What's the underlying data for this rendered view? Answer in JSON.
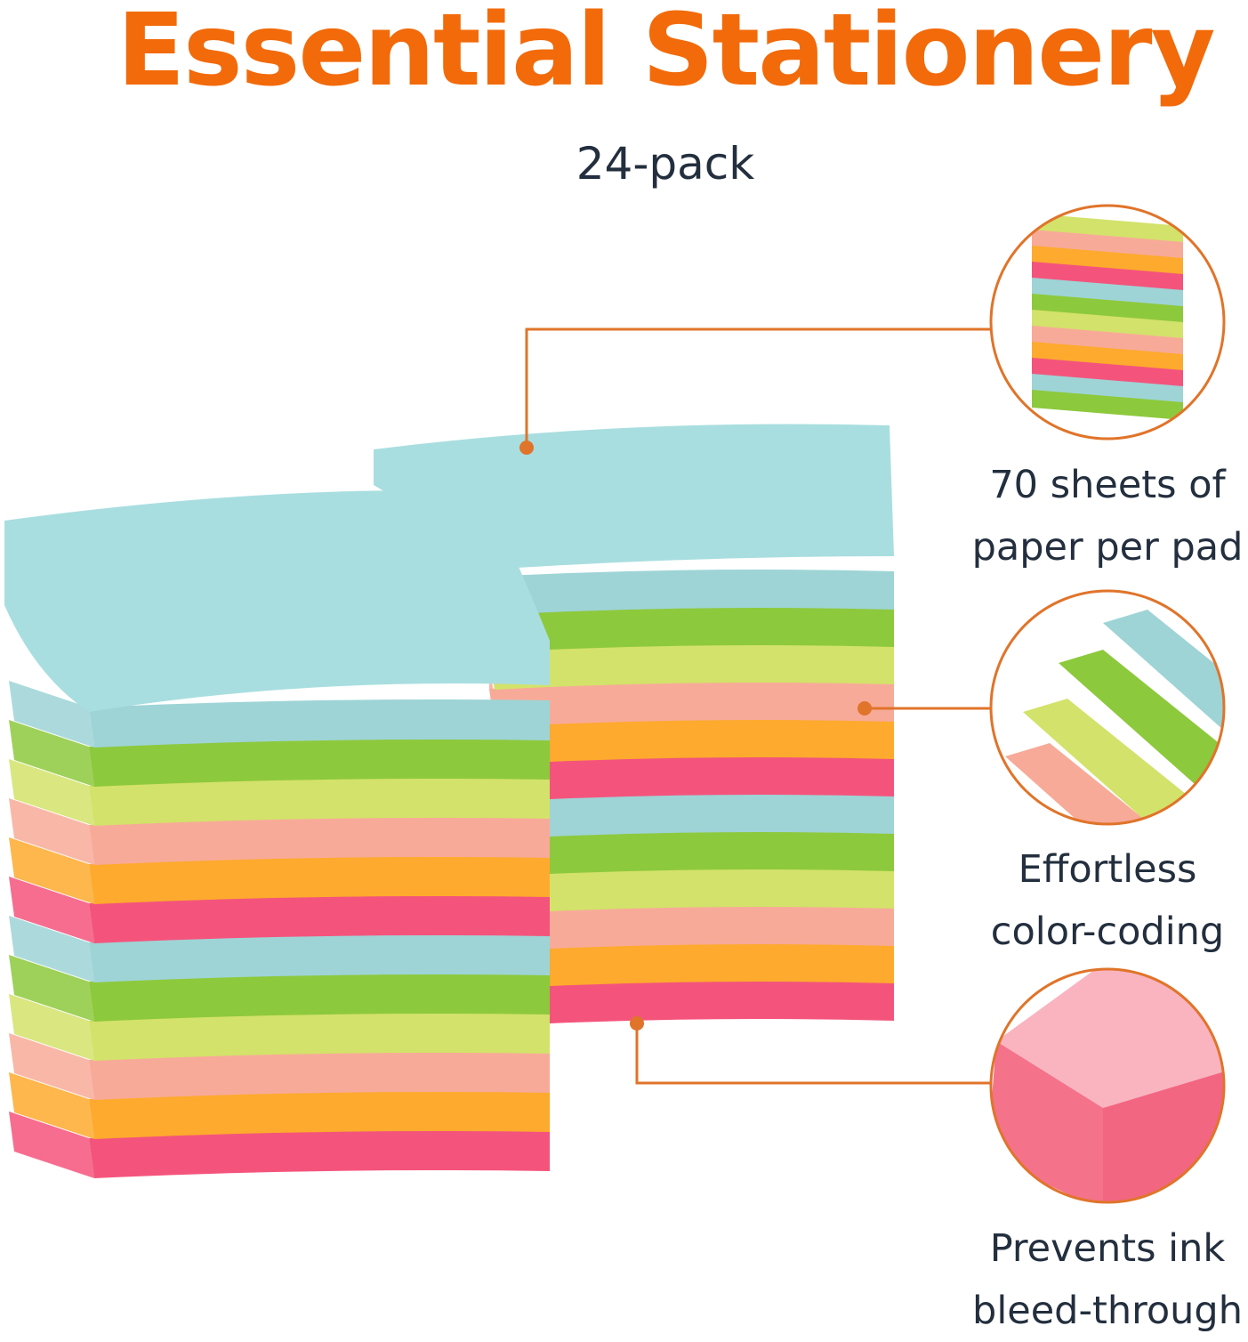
{
  "header": {
    "title": "Essential Stationery",
    "subtitle": "24-pack"
  },
  "features": [
    {
      "icon": "sticky-pad-stack-closeup",
      "caption_line1": "70 sheets of",
      "caption_line2": "paper per pad"
    },
    {
      "icon": "fanned-sticky-pads",
      "caption_line1": "Effortless",
      "caption_line2": "color-coding"
    },
    {
      "icon": "pink-pad-corner",
      "caption_line1": "Prevents ink",
      "caption_line2": "bleed-through"
    }
  ],
  "colors": {
    "title": "#F26A0A",
    "text": "#232F3E",
    "leader": "#E0742A",
    "pad_top": "#A9DEE0",
    "pad_bands": [
      "#9ED4D6",
      "#8DC93C",
      "#D3E26A",
      "#F8AA98",
      "#FDAA2E",
      "#F4547C"
    ]
  }
}
